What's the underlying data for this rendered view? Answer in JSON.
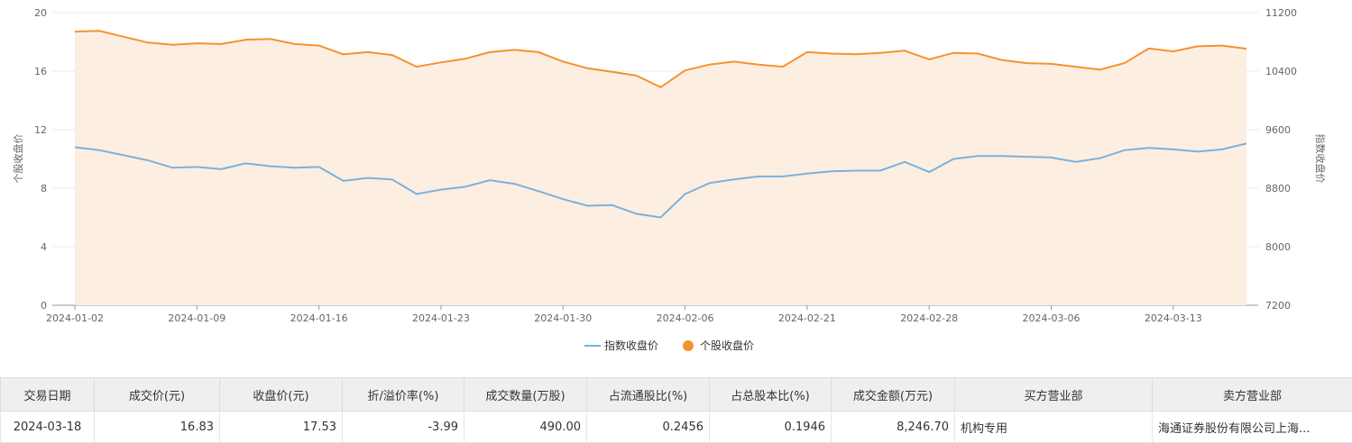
{
  "chart_data": {
    "type": "line",
    "x": [
      "2024-01-02",
      "2024-01-03",
      "2024-01-04",
      "2024-01-05",
      "2024-01-08",
      "2024-01-09",
      "2024-01-10",
      "2024-01-11",
      "2024-01-12",
      "2024-01-15",
      "2024-01-16",
      "2024-01-17",
      "2024-01-18",
      "2024-01-19",
      "2024-01-22",
      "2024-01-23",
      "2024-01-24",
      "2024-01-25",
      "2024-01-26",
      "2024-01-29",
      "2024-01-30",
      "2024-01-31",
      "2024-02-01",
      "2024-02-02",
      "2024-02-05",
      "2024-02-06",
      "2024-02-07",
      "2024-02-08",
      "2024-02-19",
      "2024-02-20",
      "2024-02-21",
      "2024-02-22",
      "2024-02-23",
      "2024-02-26",
      "2024-02-27",
      "2024-02-28",
      "2024-02-29",
      "2024-03-01",
      "2024-03-04",
      "2024-03-05",
      "2024-03-06",
      "2024-03-07",
      "2024-03-08",
      "2024-03-11",
      "2024-03-12",
      "2024-03-13",
      "2024-03-14",
      "2024-03-15",
      "2024-03-18"
    ],
    "x_ticks": [
      "2024-01-02",
      "2024-01-09",
      "2024-01-16",
      "2024-01-23",
      "2024-01-30",
      "2024-02-06",
      "2024-02-21",
      "2024-02-28",
      "2024-03-06",
      "2024-03-13"
    ],
    "series": [
      {
        "name": "指数收盘价",
        "axis": "right",
        "color": "#7ab2dc",
        "values": [
          9360,
          9320,
          9250,
          9180,
          9080,
          9090,
          9060,
          9140,
          9100,
          9080,
          9090,
          8900,
          8940,
          8920,
          8720,
          8780,
          8820,
          8910,
          8860,
          8760,
          8650,
          8560,
          8570,
          8450,
          8400,
          8720,
          8870,
          8920,
          8960,
          8960,
          9000,
          9030,
          9040,
          9040,
          9160,
          9020,
          9200,
          9240,
          9240,
          9230,
          9220,
          9160,
          9210,
          9320,
          9350,
          9330,
          9300,
          9330,
          9410
        ]
      },
      {
        "name": "个股收盘价",
        "axis": "left",
        "color": "#f5922f",
        "values": [
          18.7,
          18.75,
          18.35,
          17.95,
          17.8,
          17.9,
          17.85,
          18.15,
          18.2,
          17.85,
          17.75,
          17.15,
          17.3,
          17.1,
          16.3,
          16.6,
          16.85,
          17.3,
          17.45,
          17.3,
          16.65,
          16.2,
          15.95,
          15.7,
          14.9,
          16.05,
          16.45,
          16.65,
          16.45,
          16.3,
          17.3,
          17.2,
          17.15,
          17.25,
          17.4,
          16.8,
          17.25,
          17.2,
          16.75,
          16.55,
          16.5,
          16.3,
          16.1,
          16.55,
          17.55,
          17.35,
          17.7,
          17.75,
          17.53
        ]
      }
    ],
    "y_left": {
      "label": "个股收盘价",
      "range": [
        0,
        20
      ],
      "ticks": [
        "0",
        "4",
        "8",
        "12",
        "16",
        "20"
      ]
    },
    "y_right": {
      "label": "指数收盘价",
      "range": [
        7200,
        11200
      ],
      "ticks": [
        "7200",
        "8000",
        "8800",
        "9600",
        "10400",
        "11200"
      ]
    },
    "legend": [
      "指数收盘价",
      "个股收盘价"
    ],
    "legend_position": "bottom-center",
    "grid": true
  },
  "table": {
    "headers": [
      "交易日期",
      "成交价(元)",
      "收盘价(元)",
      "折/溢价率(%)",
      "成交数量(万股)",
      "占流通股比(%)",
      "占总股本比(%)",
      "成交金额(万元)",
      "买方营业部",
      "卖方营业部"
    ],
    "rows": [
      [
        "2024-03-18",
        "16.83",
        "17.53",
        "-3.99",
        "490.00",
        "0.2456",
        "0.1946",
        "8,246.70",
        "机构专用",
        "海通证券股份有限公司上海..."
      ]
    ]
  }
}
